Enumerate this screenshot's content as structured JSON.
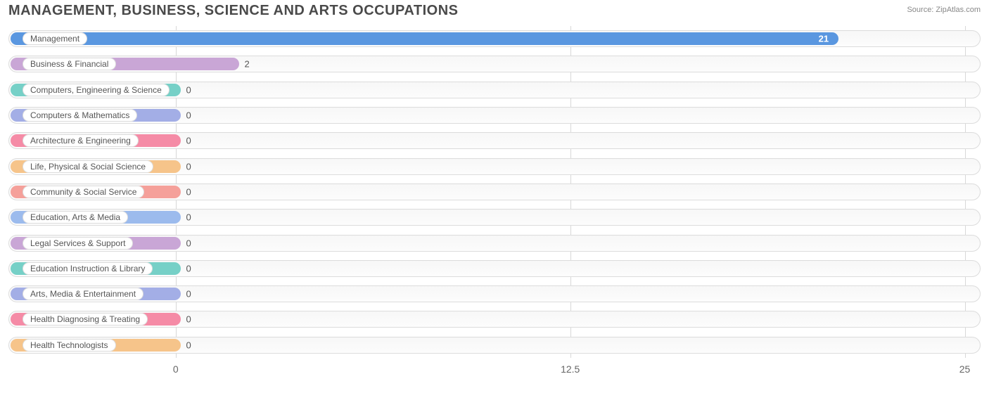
{
  "title": "MANAGEMENT, BUSINESS, SCIENCE AND ARTS OCCUPATIONS",
  "source_label": "Source: ZipAtlas.com",
  "chart": {
    "type": "bar-horizontal",
    "x_min": -5.3,
    "x_max": 25.5,
    "x_ticks": [
      {
        "value": 0,
        "label": "0"
      },
      {
        "value": 12.5,
        "label": "12.5"
      },
      {
        "value": 25,
        "label": "25"
      }
    ],
    "grid_color": "#d8d8d8",
    "track_border_color": "#dcdcdc",
    "track_background": "#f9f9f9",
    "label_text_color": "#555555",
    "value_text_color": "#555555",
    "title_color": "#4a4a4a",
    "source_color": "#888888",
    "min_bar_value": 0.15,
    "bars": [
      {
        "label": "Management",
        "value": 21,
        "value_label": "21",
        "color": "#5a97e0",
        "value_label_inside": true
      },
      {
        "label": "Business & Financial",
        "value": 2,
        "value_label": "2",
        "color": "#c9a6d6",
        "value_label_inside": false
      },
      {
        "label": "Computers, Engineering & Science",
        "value": 0,
        "value_label": "0",
        "color": "#76d0c7",
        "value_label_inside": false
      },
      {
        "label": "Computers & Mathematics",
        "value": 0,
        "value_label": "0",
        "color": "#a3aee6",
        "value_label_inside": false
      },
      {
        "label": "Architecture & Engineering",
        "value": 0,
        "value_label": "0",
        "color": "#f58ba6",
        "value_label_inside": false
      },
      {
        "label": "Life, Physical & Social Science",
        "value": 0,
        "value_label": "0",
        "color": "#f6c48a",
        "value_label_inside": false
      },
      {
        "label": "Community & Social Service",
        "value": 0,
        "value_label": "0",
        "color": "#f5a09a",
        "value_label_inside": false
      },
      {
        "label": "Education, Arts & Media",
        "value": 0,
        "value_label": "0",
        "color": "#9cbbed",
        "value_label_inside": false
      },
      {
        "label": "Legal Services & Support",
        "value": 0,
        "value_label": "0",
        "color": "#c9a6d6",
        "value_label_inside": false
      },
      {
        "label": "Education Instruction & Library",
        "value": 0,
        "value_label": "0",
        "color": "#76d0c7",
        "value_label_inside": false
      },
      {
        "label": "Arts, Media & Entertainment",
        "value": 0,
        "value_label": "0",
        "color": "#a3aee6",
        "value_label_inside": false
      },
      {
        "label": "Health Diagnosing & Treating",
        "value": 0,
        "value_label": "0",
        "color": "#f58ba6",
        "value_label_inside": false
      },
      {
        "label": "Health Technologists",
        "value": 0,
        "value_label": "0",
        "color": "#f6c48a",
        "value_label_inside": false
      }
    ]
  }
}
